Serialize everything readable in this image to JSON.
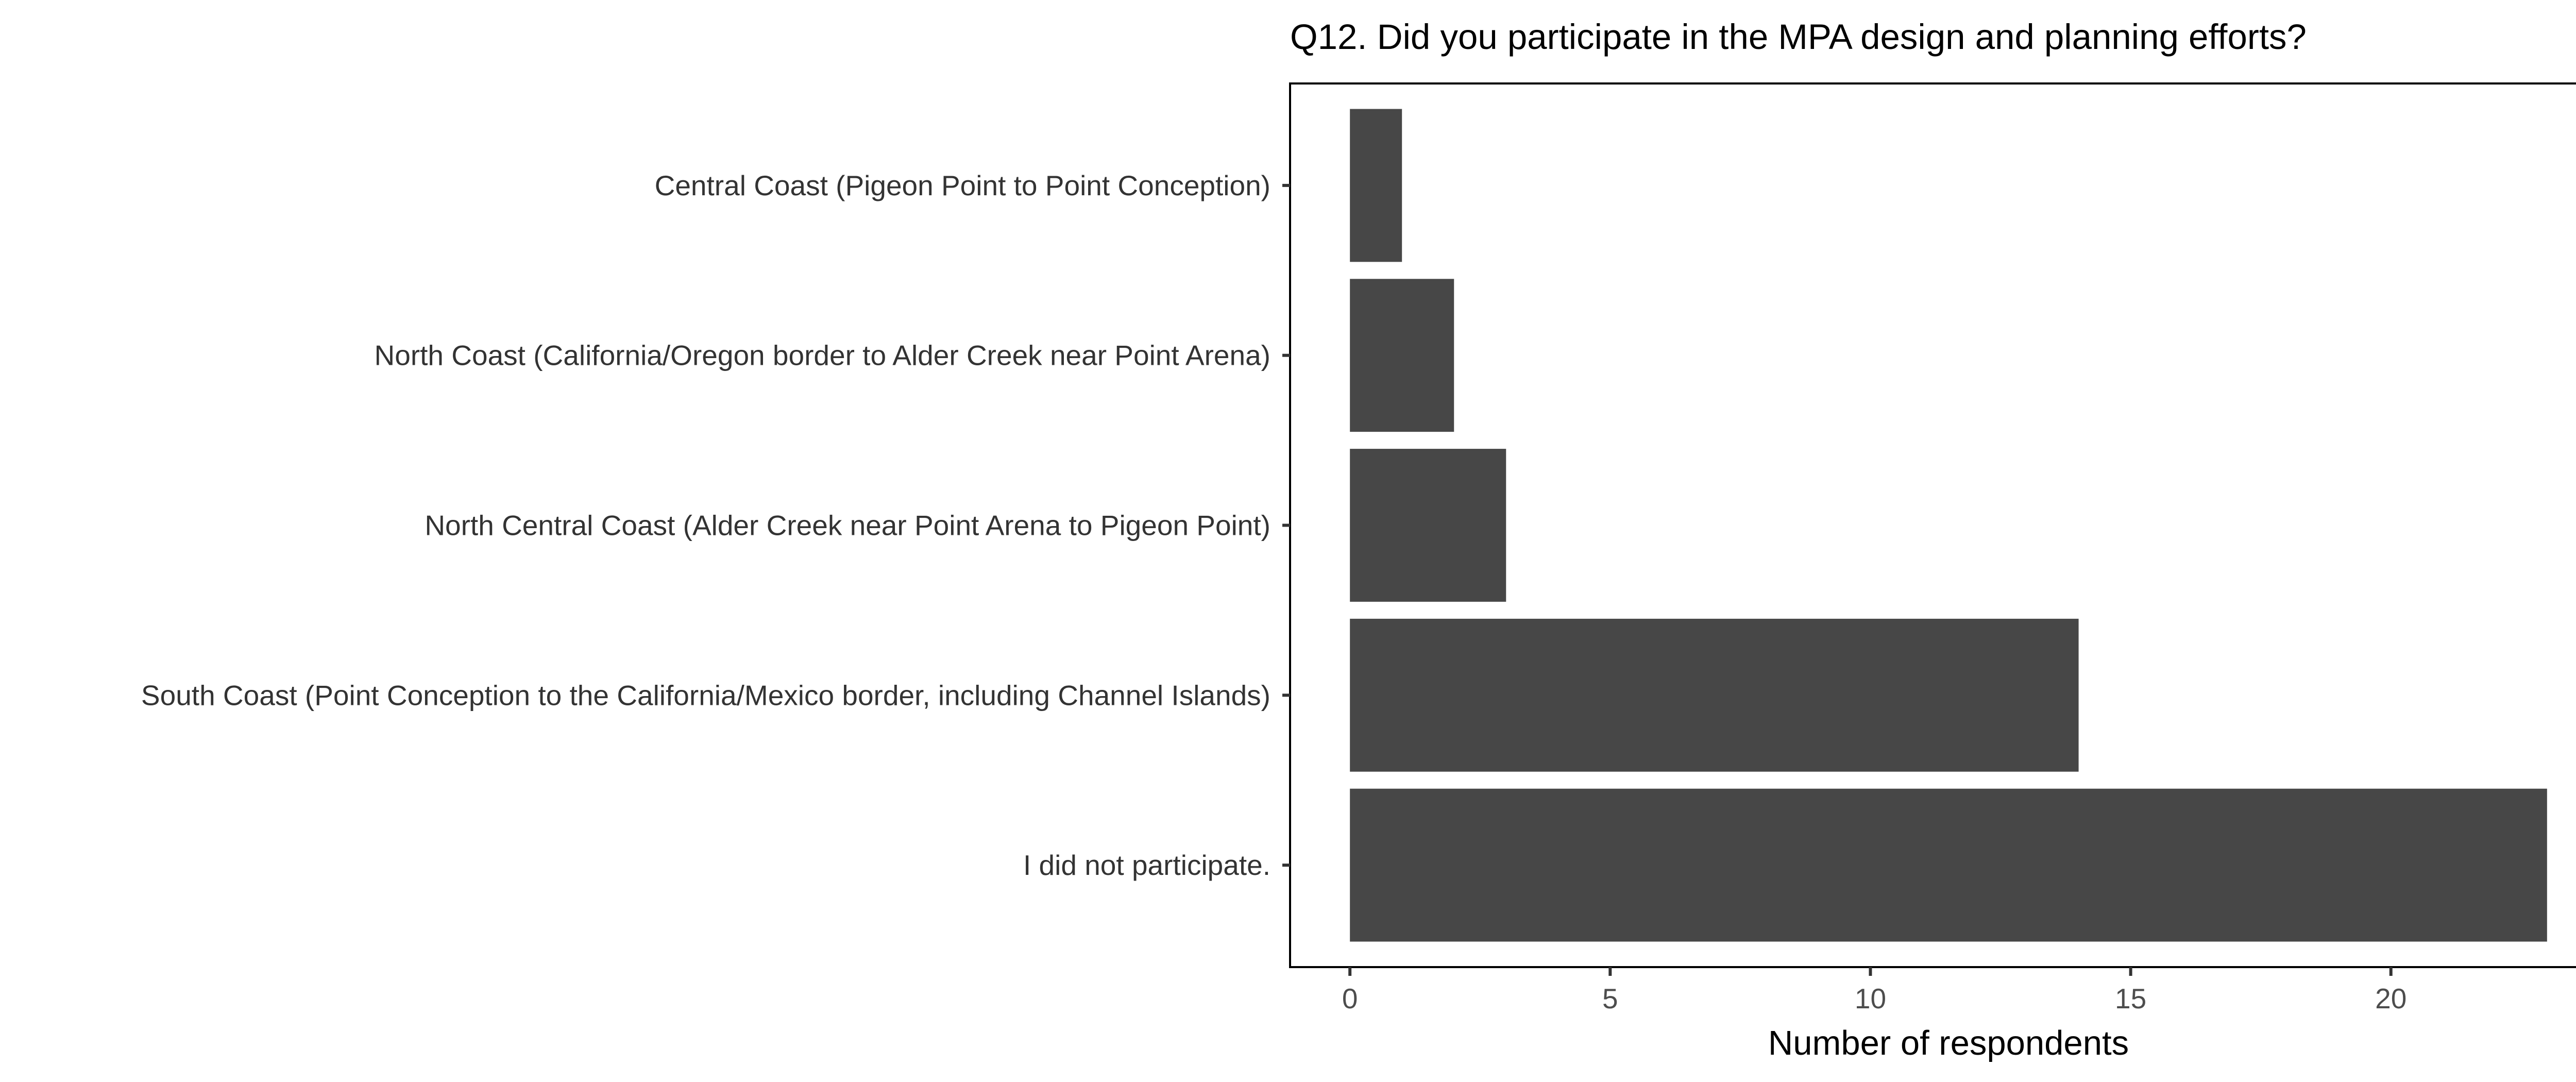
{
  "colors": {
    "bar": "#474747",
    "frame": "#000000",
    "tick": "#333333",
    "label": "#333333",
    "background": "#ffffff"
  },
  "chart_data": {
    "type": "bar",
    "orientation": "horizontal",
    "title": "Q12. Did you participate in the MPA design and planning efforts?",
    "xlabel": "Number of respondents",
    "ylabel": "",
    "categories": [
      "Central Coast (Pigeon Point to Point Conception)",
      "North Coast (California/Oregon border to Alder Creek near Point Arena)",
      "North Central Coast (Alder Creek near Point Arena to Pigeon Point)",
      "South Coast (Point Conception to the California/Mexico border, including Channel Islands)",
      "I did not participate."
    ],
    "values": [
      1,
      2,
      3,
      14,
      23
    ],
    "xlim": [
      -1.15,
      24.15
    ],
    "xticks": [
      0,
      5,
      10,
      15,
      20
    ],
    "xtick_labels": [
      "0",
      "5",
      "10",
      "15",
      "20"
    ],
    "grid": false,
    "legend": "none"
  }
}
